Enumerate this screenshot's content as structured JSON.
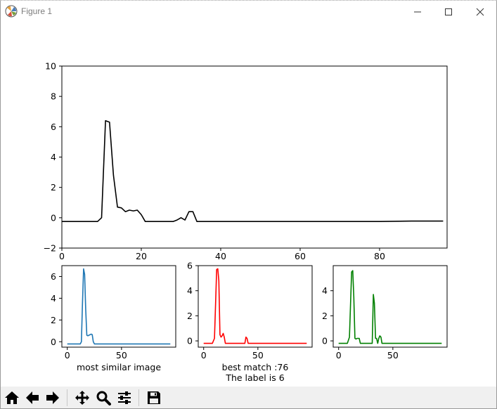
{
  "window": {
    "title": "Figure 1"
  },
  "toolbar": {
    "buttons": [
      {
        "name": "home-button",
        "icon": "home-icon"
      },
      {
        "name": "back-button",
        "icon": "arrow-left-icon"
      },
      {
        "name": "forward-button",
        "icon": "arrow-right-icon"
      },
      {
        "name": "pan-button",
        "icon": "move-arrows-icon"
      },
      {
        "name": "zoom-button",
        "icon": "magnifier-icon"
      },
      {
        "name": "configure-subplots-button",
        "icon": "sliders-icon"
      },
      {
        "name": "save-button",
        "icon": "floppy-disk-icon"
      }
    ]
  },
  "chart_data": [
    {
      "type": "line",
      "xlabel": "",
      "ylabel": "",
      "xlim": [
        0,
        97
      ],
      "ylim": [
        -2,
        10
      ],
      "xticks": [
        "0",
        "20",
        "40",
        "60",
        "80"
      ],
      "yticks": [
        "−2",
        "0",
        "2",
        "4",
        "6",
        "8",
        "10"
      ],
      "series": [
        {
          "color": "#000000",
          "x": [
            0,
            1,
            2,
            3,
            4,
            5,
            6,
            7,
            8,
            9,
            10,
            11,
            12,
            13,
            14,
            15,
            16,
            17,
            18,
            19,
            20,
            21,
            22,
            23,
            24,
            25,
            26,
            27,
            28,
            29,
            30,
            31,
            32,
            33,
            34,
            35,
            40,
            50,
            60,
            70,
            80,
            88,
            96
          ],
          "y": [
            -0.25,
            -0.25,
            -0.25,
            -0.25,
            -0.25,
            -0.25,
            -0.25,
            -0.25,
            -0.25,
            -0.25,
            0,
            6.4,
            6.3,
            2.8,
            0.7,
            0.65,
            0.4,
            0.5,
            0.45,
            0.5,
            0.2,
            -0.25,
            -0.25,
            -0.25,
            -0.25,
            -0.25,
            -0.25,
            -0.25,
            -0.25,
            -0.15,
            0,
            -0.15,
            0.4,
            0.4,
            -0.25,
            -0.25,
            -0.25,
            -0.25,
            -0.25,
            -0.25,
            -0.25,
            -0.22,
            -0.22
          ]
        }
      ]
    },
    {
      "type": "line",
      "xlabel": "most similar image",
      "xlim": [
        -5,
        100
      ],
      "ylim": [
        -0.5,
        7
      ],
      "xticks": [
        "0",
        "50"
      ],
      "yticks": [
        "0",
        "2",
        "4",
        "6"
      ],
      "series": [
        {
          "color": "#1f77b4",
          "x": [
            0,
            5,
            10,
            12,
            13,
            14,
            15,
            16,
            17,
            18,
            19,
            20,
            22,
            23,
            24,
            25,
            30,
            40,
            60,
            80,
            95
          ],
          "y": [
            -0.2,
            -0.2,
            -0.2,
            -0.2,
            0,
            3.5,
            6.7,
            6.2,
            3.0,
            0.6,
            0.55,
            0.6,
            0.7,
            0.65,
            0,
            -0.2,
            -0.2,
            -0.2,
            -0.2,
            -0.2,
            -0.2
          ]
        }
      ]
    },
    {
      "type": "line",
      "xlabel": "best match :76",
      "xlabel2": "The label is 6",
      "xlim": [
        -5,
        100
      ],
      "ylim": [
        -0.5,
        6
      ],
      "xticks": [
        "0",
        "50"
      ],
      "yticks": [
        "0",
        "2",
        "4",
        "6"
      ],
      "series": [
        {
          "color": "#ff0000",
          "x": [
            0,
            5,
            8,
            10,
            11,
            12,
            13,
            14,
            15,
            16,
            17,
            18,
            19,
            20,
            25,
            30,
            35,
            38,
            39,
            40,
            41,
            45,
            60,
            80,
            95
          ],
          "y": [
            -0.2,
            -0.2,
            -0.2,
            0.2,
            3.0,
            5.7,
            5.75,
            4.8,
            0.5,
            0.3,
            0.4,
            0.6,
            0.3,
            -0.2,
            -0.2,
            -0.2,
            -0.2,
            -0.2,
            0.3,
            0.2,
            -0.2,
            -0.2,
            -0.2,
            -0.2,
            -0.2
          ]
        }
      ]
    },
    {
      "type": "line",
      "xlabel": "",
      "xlim": [
        -5,
        100
      ],
      "ylim": [
        -0.5,
        6
      ],
      "xticks": [
        "0",
        "50"
      ],
      "yticks": [
        "0",
        "2",
        "4"
      ],
      "series": [
        {
          "color": "#008000",
          "x": [
            0,
            5,
            8,
            10,
            11,
            12,
            13,
            14,
            15,
            16,
            17,
            18,
            19,
            20,
            25,
            30,
            31,
            32,
            33,
            34,
            35,
            36,
            37,
            38,
            39,
            40,
            45,
            60,
            80,
            95
          ],
          "y": [
            -0.2,
            -0.2,
            -0.2,
            0.3,
            3.0,
            5.5,
            5.6,
            3.5,
            0.2,
            0.15,
            0.2,
            0.2,
            0.2,
            -0.2,
            -0.2,
            -0.2,
            -0.2,
            3.7,
            3.0,
            0.2,
            0.2,
            -0.2,
            0.2,
            0.4,
            0.3,
            -0.2,
            -0.2,
            -0.2,
            -0.2,
            -0.2
          ]
        }
      ]
    }
  ]
}
